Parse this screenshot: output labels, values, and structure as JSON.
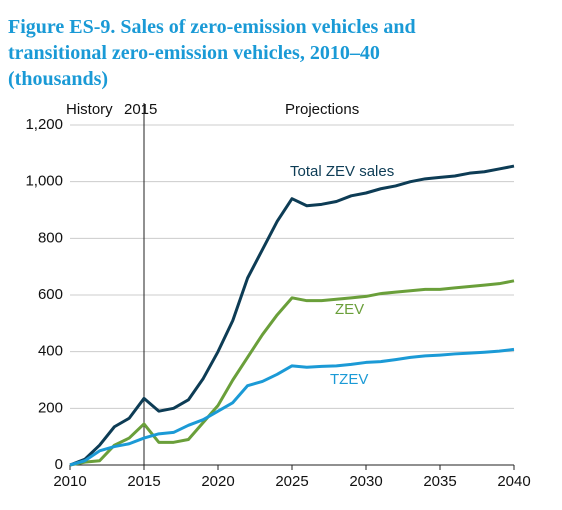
{
  "chart_data": {
    "type": "line",
    "title": [
      "Figure ES-9. Sales of zero-emission vehicles and",
      "transitional zero-emission vehicles, 2010–40",
      "(thousands)"
    ],
    "annotations": {
      "history": "History",
      "marker_year": "2015",
      "projections": "Projections"
    },
    "x": [
      2010,
      2011,
      2012,
      2013,
      2014,
      2015,
      2016,
      2017,
      2018,
      2019,
      2020,
      2021,
      2022,
      2023,
      2024,
      2025,
      2026,
      2027,
      2028,
      2029,
      2030,
      2031,
      2032,
      2033,
      2034,
      2035,
      2036,
      2037,
      2038,
      2039,
      2040
    ],
    "series": [
      {
        "name": "Total ZEV sales",
        "color": "#0d3c55",
        "values": [
          0,
          20,
          70,
          135,
          165,
          235,
          190,
          200,
          230,
          305,
          400,
          510,
          660,
          760,
          860,
          940,
          915,
          920,
          930,
          950,
          960,
          975,
          985,
          1000,
          1010,
          1015,
          1020,
          1030,
          1035,
          1045,
          1055
        ]
      },
      {
        "name": "ZEV",
        "color": "#6a9f3a",
        "values": [
          0,
          10,
          15,
          70,
          95,
          145,
          80,
          80,
          90,
          150,
          210,
          300,
          380,
          460,
          530,
          590,
          580,
          580,
          585,
          590,
          595,
          605,
          610,
          615,
          620,
          620,
          625,
          630,
          635,
          640,
          650
        ]
      },
      {
        "name": "TZEV",
        "color": "#1b9ad6",
        "values": [
          0,
          15,
          50,
          65,
          75,
          95,
          110,
          115,
          140,
          160,
          190,
          220,
          280,
          295,
          320,
          350,
          345,
          348,
          350,
          355,
          362,
          365,
          372,
          380,
          385,
          388,
          392,
          395,
          398,
          402,
          408
        ]
      }
    ],
    "xlim": [
      2010,
      2040
    ],
    "xticks": [
      2010,
      2015,
      2020,
      2025,
      2030,
      2035,
      2040
    ],
    "ylim": [
      0,
      1200
    ],
    "yticks": [
      0,
      200,
      400,
      600,
      800,
      {
        "value": 1000,
        "label": "1,000"
      },
      {
        "value": 1200,
        "label": "1,200"
      }
    ],
    "marker_x": 2015,
    "grid": true
  }
}
